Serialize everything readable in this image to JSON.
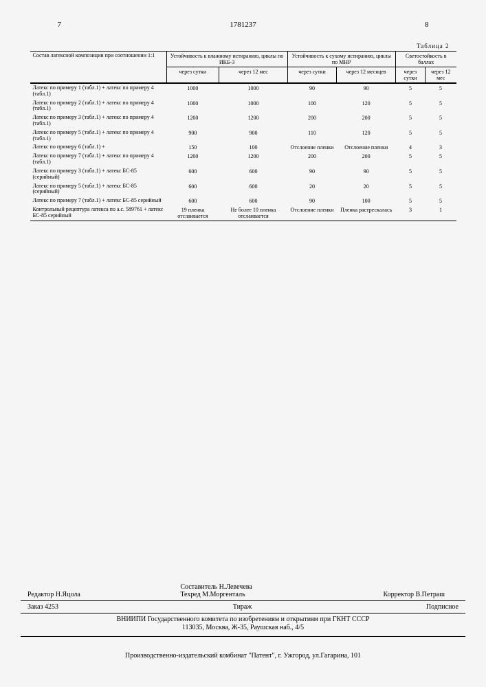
{
  "header": {
    "left_page": "7",
    "doc_number": "1781237",
    "right_page": "8"
  },
  "table": {
    "caption": "Таблица 2",
    "columns": {
      "composition": "Состав латексной композиции при соотношении 1:1",
      "wet_title": "Устойчивость к влажному истиранию, циклы по ИКБ-3",
      "wet_sub1": "через сутки",
      "wet_sub2": "через 12 мес",
      "dry_title": "Устойчивость к сухому истиранию, циклы по МНР",
      "dry_sub1": "через сутки",
      "dry_sub2": "через 12 месяцев",
      "light_title": "Светостойкость в баллах",
      "light_sub1": "через сутки",
      "light_sub2": "через 12 мес"
    },
    "rows": [
      {
        "label": "Латекс по примеру 1 (табл.1) + латекс по примеру 4 (табл.1)",
        "c": [
          "1000",
          "1000",
          "90",
          "90",
          "5",
          "5"
        ]
      },
      {
        "label": "Латекс по примеру 2 (табл.1) + латекс по примеру 4 (табл.1)",
        "c": [
          "1000",
          "1000",
          "100",
          "120",
          "5",
          "5"
        ]
      },
      {
        "label": "Латекс по примеру 3 (табл.1) + латекс по примеру 4 (табл.1)",
        "c": [
          "1200",
          "1200",
          "200",
          "200",
          "5",
          "5"
        ]
      },
      {
        "label": "Латекс по примеру 5 (табл.1) + латекс по примеру 4 (табл.1)",
        "c": [
          "900",
          "900",
          "110",
          "120",
          "5",
          "5"
        ]
      },
      {
        "label": "Латекс по примеру 6 (табл.1) +",
        "c": [
          "150",
          "100",
          "Отслоение пленки",
          "Отслоение пленки",
          "4",
          "3"
        ]
      },
      {
        "label": "Латекс по примеру 7 (табл.1) + латекс по примеру 4 (табл.1)",
        "c": [
          "1200",
          "1200",
          "200",
          "200",
          "5",
          "5"
        ]
      },
      {
        "label": "Латекс по примеру 3 (табл.1) + латекс БС-85 (серийный)",
        "c": [
          "600",
          "600",
          "90",
          "90",
          "5",
          "5"
        ]
      },
      {
        "label": "Латекс по примеру 5 (табл.1) + латекс БС-85 (серийный)",
        "c": [
          "600",
          "600",
          "20",
          "20",
          "5",
          "5"
        ]
      },
      {
        "label": "Латекс по примеру 7 (табл.1) + латекс БС-85 серийный",
        "c": [
          "600",
          "600",
          "90",
          "100",
          "5",
          "5"
        ]
      },
      {
        "label": "Контрольный рецептура латекса по а.с. 589761 + латекс БС-85 серийный",
        "c": [
          "19 пленка отслаивается",
          "Не более 10 пленка отслаивается",
          "Отслоение пленки",
          "Пленка растрескалась",
          "3",
          "1"
        ]
      }
    ]
  },
  "footer": {
    "editor_label": "Редактор",
    "editor_name": "Н.Яцола",
    "compiler_label": "Составитель",
    "compiler_name": "Н.Левечева",
    "tech_ed_label": "Техред",
    "tech_ed_name": "М.Моргенталь",
    "corrector_label": "Корректор",
    "corrector_name": "В.Петраш",
    "order": "Заказ 4253",
    "tirage": "Тираж",
    "subscription": "Подписное",
    "institute": "ВНИИПИ Государственного комитета по изобретениям и открытиям при ГКНТ СССР",
    "address": "113035, Москва, Ж-35, Раушская наб., 4/5",
    "production": "Производственно-издательский комбинат \"Патент\", г. Ужгород, ул.Гагарина, 101"
  }
}
